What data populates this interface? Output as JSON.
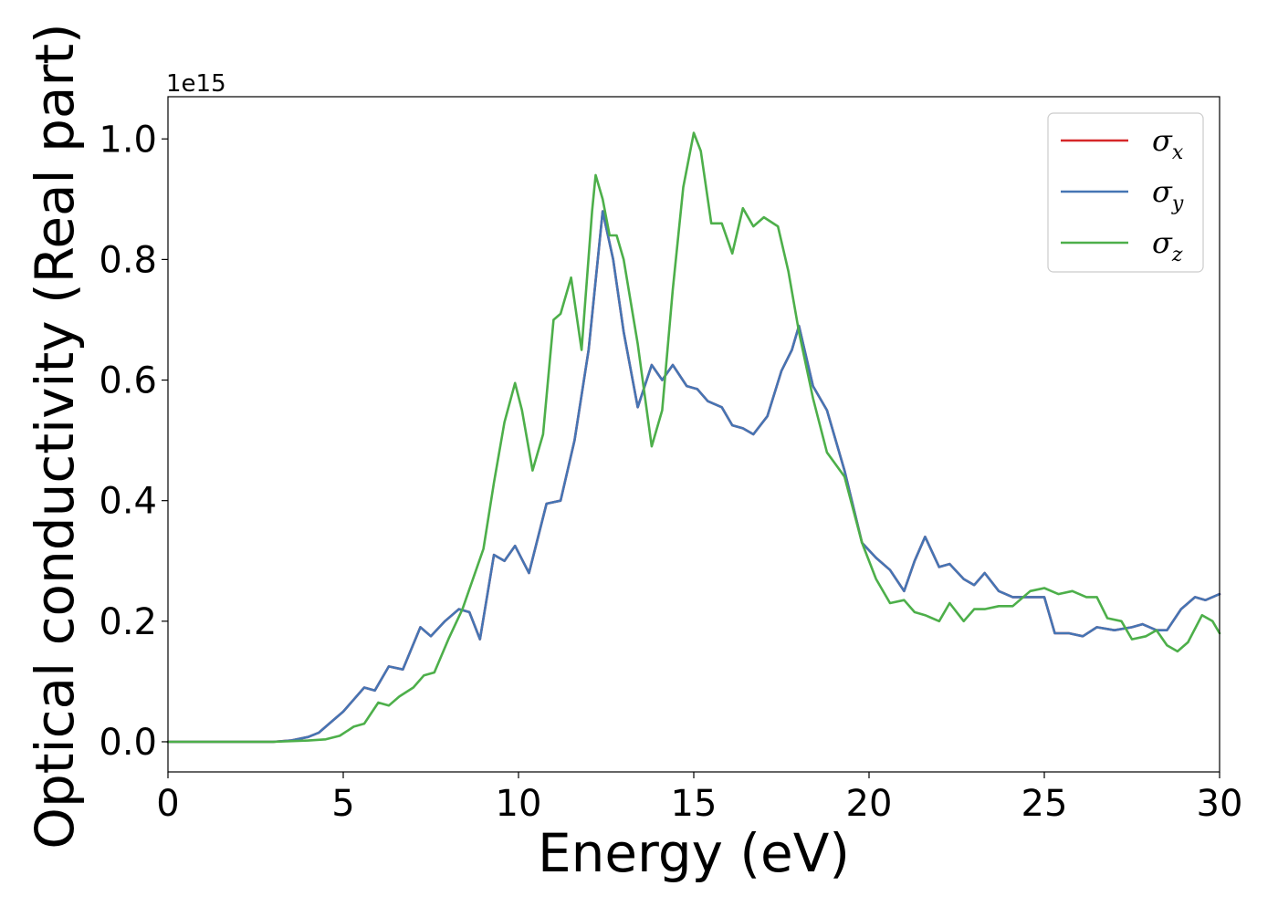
{
  "chart_data": {
    "type": "line",
    "title": "",
    "xlabel": "Energy (eV)",
    "ylabel": "Optical conductivity (Real part)",
    "y_offset_label": "1e15",
    "xlim": [
      0,
      30
    ],
    "ylim": [
      -0.05,
      1.07
    ],
    "x_ticks": [
      0,
      5,
      10,
      15,
      20,
      25,
      30
    ],
    "x_tick_labels": [
      "0",
      "5",
      "10",
      "15",
      "20",
      "25",
      "30"
    ],
    "y_ticks": [
      0.0,
      0.2,
      0.4,
      0.6,
      0.8,
      1.0
    ],
    "y_tick_labels": [
      "0.0",
      "0.2",
      "0.4",
      "0.6",
      "0.8",
      "1.0"
    ],
    "grid": false,
    "legend_position": "top-right",
    "series": [
      {
        "name": "σx",
        "symbol": "σ",
        "subscript": "x",
        "color": "#d62728",
        "x": [
          0,
          1,
          2,
          3,
          3.5,
          4,
          4.3,
          4.6,
          5,
          5.3,
          5.6,
          5.9,
          6.3,
          6.7,
          7.2,
          7.5,
          7.9,
          8.3,
          8.6,
          8.9,
          9.3,
          9.6,
          9.9,
          10.3,
          10.8,
          11.2,
          11.6,
          12,
          12.4,
          12.7,
          13,
          13.4,
          13.8,
          14.1,
          14.4,
          14.8,
          15.1,
          15.4,
          15.8,
          16.1,
          16.4,
          16.7,
          17.1,
          17.5,
          17.8,
          18,
          18.4,
          18.8,
          19.3,
          19.8,
          20.2,
          20.6,
          21,
          21.3,
          21.6,
          22,
          22.3,
          22.7,
          23,
          23.3,
          23.7,
          24.1,
          24.6,
          25,
          25.3,
          25.7,
          26.1,
          26.5,
          27,
          27.5,
          27.8,
          28.2,
          28.5,
          28.9,
          29.3,
          29.6,
          30
        ],
        "y": [
          0.0,
          0.0,
          0.0,
          0.0,
          0.002,
          0.008,
          0.015,
          0.03,
          0.05,
          0.07,
          0.09,
          0.085,
          0.125,
          0.12,
          0.19,
          0.175,
          0.2,
          0.22,
          0.215,
          0.17,
          0.31,
          0.3,
          0.325,
          0.28,
          0.395,
          0.4,
          0.5,
          0.65,
          0.88,
          0.8,
          0.68,
          0.555,
          0.625,
          0.6,
          0.625,
          0.59,
          0.585,
          0.565,
          0.555,
          0.525,
          0.52,
          0.51,
          0.54,
          0.615,
          0.65,
          0.69,
          0.59,
          0.55,
          0.45,
          0.33,
          0.305,
          0.285,
          0.25,
          0.3,
          0.34,
          0.29,
          0.295,
          0.27,
          0.26,
          0.28,
          0.25,
          0.24,
          0.24,
          0.24,
          0.18,
          0.18,
          0.175,
          0.19,
          0.185,
          0.19,
          0.195,
          0.185,
          0.185,
          0.22,
          0.24,
          0.235,
          0.245
        ]
      },
      {
        "name": "σy",
        "symbol": "σ",
        "subscript": "y",
        "color": "#4575b4",
        "x": [
          0,
          1,
          2,
          3,
          3.5,
          4,
          4.3,
          4.6,
          5,
          5.3,
          5.6,
          5.9,
          6.3,
          6.7,
          7.2,
          7.5,
          7.9,
          8.3,
          8.6,
          8.9,
          9.3,
          9.6,
          9.9,
          10.3,
          10.8,
          11.2,
          11.6,
          12,
          12.4,
          12.7,
          13,
          13.4,
          13.8,
          14.1,
          14.4,
          14.8,
          15.1,
          15.4,
          15.8,
          16.1,
          16.4,
          16.7,
          17.1,
          17.5,
          17.8,
          18,
          18.4,
          18.8,
          19.3,
          19.8,
          20.2,
          20.6,
          21,
          21.3,
          21.6,
          22,
          22.3,
          22.7,
          23,
          23.3,
          23.7,
          24.1,
          24.6,
          25,
          25.3,
          25.7,
          26.1,
          26.5,
          27,
          27.5,
          27.8,
          28.2,
          28.5,
          28.9,
          29.3,
          29.6,
          30
        ],
        "y": [
          0.0,
          0.0,
          0.0,
          0.0,
          0.002,
          0.008,
          0.015,
          0.03,
          0.05,
          0.07,
          0.09,
          0.085,
          0.125,
          0.12,
          0.19,
          0.175,
          0.2,
          0.22,
          0.215,
          0.17,
          0.31,
          0.3,
          0.325,
          0.28,
          0.395,
          0.4,
          0.5,
          0.65,
          0.88,
          0.8,
          0.68,
          0.555,
          0.625,
          0.6,
          0.625,
          0.59,
          0.585,
          0.565,
          0.555,
          0.525,
          0.52,
          0.51,
          0.54,
          0.615,
          0.65,
          0.69,
          0.59,
          0.55,
          0.45,
          0.33,
          0.305,
          0.285,
          0.25,
          0.3,
          0.34,
          0.29,
          0.295,
          0.27,
          0.26,
          0.28,
          0.25,
          0.24,
          0.24,
          0.24,
          0.18,
          0.18,
          0.175,
          0.19,
          0.185,
          0.19,
          0.195,
          0.185,
          0.185,
          0.22,
          0.24,
          0.235,
          0.245
        ]
      },
      {
        "name": "σz",
        "symbol": "σ",
        "subscript": "z",
        "color": "#4daf4a",
        "x": [
          0,
          1,
          2,
          3,
          4,
          4.5,
          4.9,
          5.3,
          5.6,
          6,
          6.3,
          6.6,
          7,
          7.3,
          7.6,
          8,
          8.4,
          8.7,
          9,
          9.3,
          9.6,
          9.9,
          10.1,
          10.4,
          10.7,
          11,
          11.2,
          11.5,
          11.8,
          12.1,
          12.2,
          12.4,
          12.6,
          12.8,
          13,
          13.4,
          13.8,
          14.1,
          14.4,
          14.7,
          15,
          15.2,
          15.5,
          15.8,
          16.1,
          16.4,
          16.7,
          17,
          17.4,
          17.7,
          18,
          18.4,
          18.8,
          19.3,
          19.8,
          20.2,
          20.6,
          21,
          21.3,
          21.6,
          22,
          22.3,
          22.7,
          23,
          23.3,
          23.7,
          24.1,
          24.6,
          25,
          25.4,
          25.8,
          26.2,
          26.5,
          26.8,
          27.2,
          27.5,
          27.9,
          28.2,
          28.5,
          28.8,
          29.1,
          29.5,
          29.8,
          30
        ],
        "y": [
          0.0,
          0.0,
          0.0,
          0.0,
          0.002,
          0.004,
          0.01,
          0.025,
          0.03,
          0.065,
          0.06,
          0.075,
          0.09,
          0.11,
          0.115,
          0.17,
          0.22,
          0.27,
          0.32,
          0.43,
          0.53,
          0.595,
          0.55,
          0.45,
          0.51,
          0.7,
          0.71,
          0.77,
          0.65,
          0.88,
          0.94,
          0.9,
          0.84,
          0.84,
          0.8,
          0.66,
          0.49,
          0.55,
          0.75,
          0.92,
          1.01,
          0.98,
          0.86,
          0.86,
          0.81,
          0.885,
          0.855,
          0.87,
          0.855,
          0.78,
          0.68,
          0.57,
          0.48,
          0.44,
          0.33,
          0.27,
          0.23,
          0.235,
          0.215,
          0.21,
          0.2,
          0.23,
          0.2,
          0.22,
          0.22,
          0.225,
          0.225,
          0.25,
          0.255,
          0.245,
          0.25,
          0.24,
          0.24,
          0.205,
          0.2,
          0.17,
          0.175,
          0.185,
          0.16,
          0.15,
          0.165,
          0.21,
          0.2,
          0.18
        ]
      }
    ]
  }
}
